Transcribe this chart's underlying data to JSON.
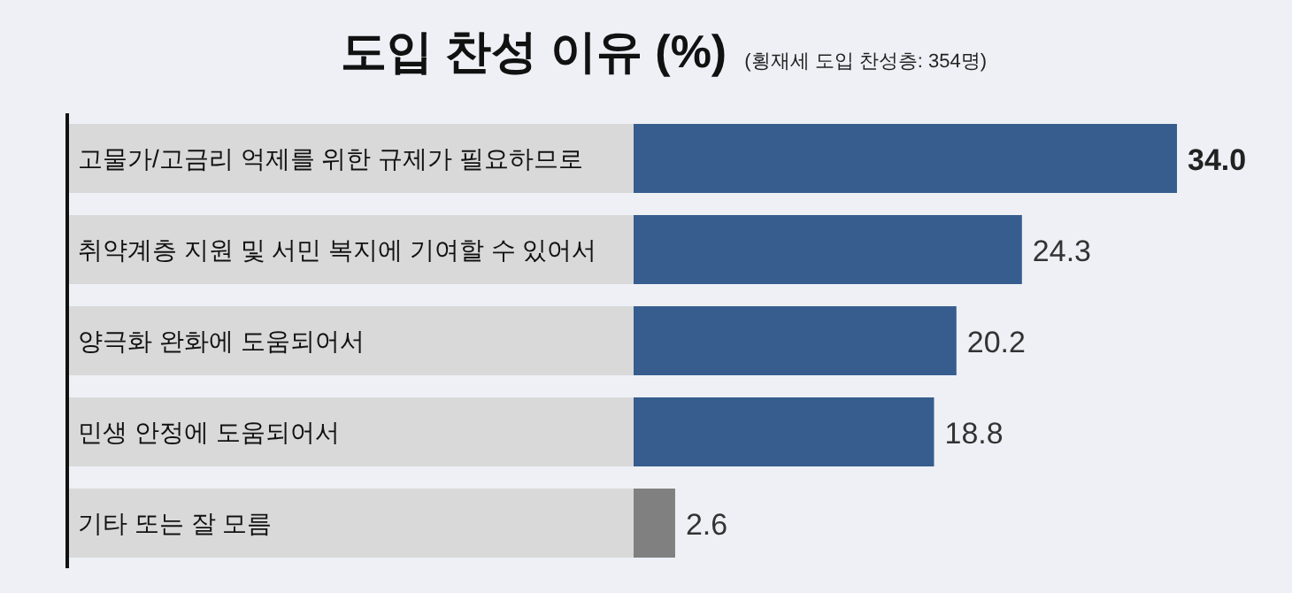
{
  "chart_data": {
    "type": "bar",
    "orientation": "horizontal",
    "title": "도입 찬성 이유 (%)",
    "subtitle": "(횡재세 도입 찬성층: 354명)",
    "categories": [
      "고물가/고금리 억제를 위한 규제가 필요하므로",
      "취약계층 지원 및 서민 복지에 기여할 수 있어서",
      "양극화 완화에 도움되어서",
      "민생 안정에 도움되어서",
      "기타 또는 잘 모름"
    ],
    "values": [
      34.0,
      24.3,
      20.2,
      18.8,
      2.6
    ],
    "colors": [
      "#365d8e",
      "#365d8e",
      "#365d8e",
      "#365d8e",
      "#808080"
    ],
    "value_labels": [
      "34.0",
      "24.3",
      "20.2",
      "18.8",
      "2.6"
    ]
  }
}
